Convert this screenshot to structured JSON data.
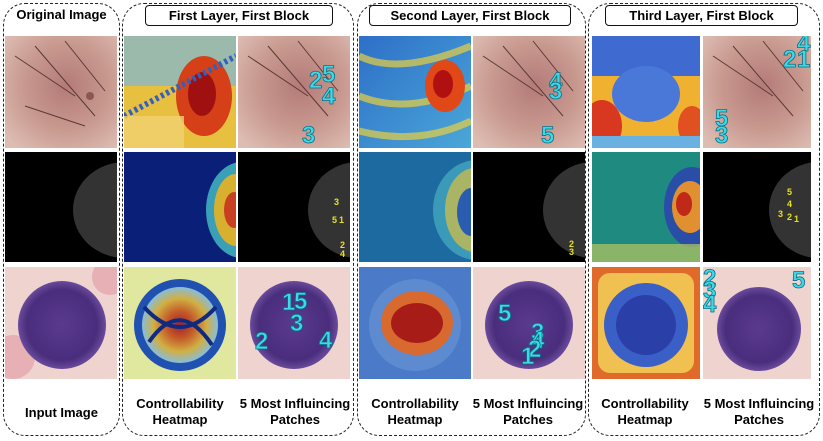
{
  "titles": {
    "original": "Original Image",
    "layer1": "First Layer, First Block",
    "layer2": "Second Layer, First Block",
    "layer3": "Third Layer, First Block"
  },
  "captions": {
    "input": "Input Image",
    "heatmap_line1": "Controllability",
    "heatmap_line2": "Heatmap",
    "patches_line1": "5 Most Influincing",
    "patches_line2": "Patches"
  },
  "patch_numbers": {
    "l1_skin": [
      "2",
      "5",
      "4",
      "3"
    ],
    "l1_mammo": [
      "3",
      "5",
      "1",
      "2",
      "4"
    ],
    "l1_cell": [
      "1",
      "5",
      "3",
      "2",
      "4"
    ],
    "l2_skin": [
      "4",
      "3",
      "5"
    ],
    "l2_mammo": [
      "2",
      "3"
    ],
    "l2_cell": [
      "5",
      "3",
      "4",
      "2",
      "1"
    ],
    "l3_skin": [
      "4",
      "2",
      "1",
      "5",
      "3"
    ],
    "l3_mammo": [
      "5",
      "4",
      "3",
      "2",
      "1"
    ],
    "l3_cell": [
      "2",
      "3",
      "4",
      "5"
    ]
  }
}
